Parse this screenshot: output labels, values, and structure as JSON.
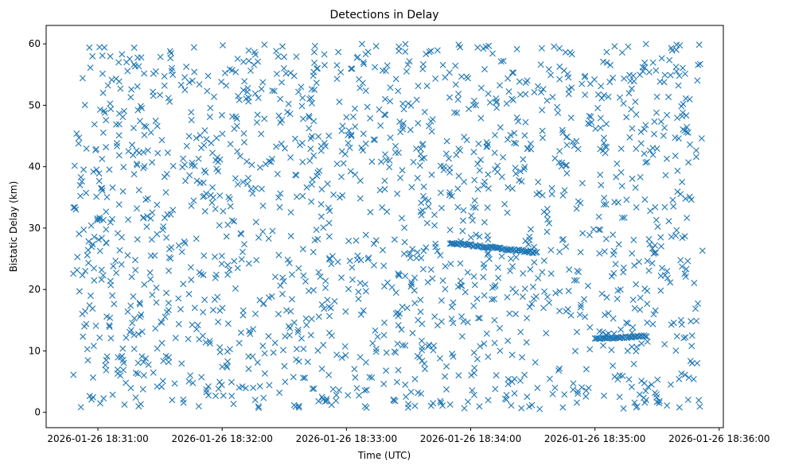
{
  "chart_data": {
    "type": "scatter",
    "title": "Detections in Delay",
    "xlabel": "Time (UTC)",
    "ylabel": "Bistatic Delay (km)",
    "x_ticks": [
      "2026-01-26 18:31:00",
      "2026-01-26 18:32:00",
      "2026-01-26 18:33:00",
      "2026-01-26 18:34:00",
      "2026-01-26 18:35:00",
      "2026-01-26 18:36:00"
    ],
    "y_ticks": [
      "0",
      "10",
      "20",
      "30",
      "40",
      "50",
      "60"
    ],
    "xlim": [
      "2026-01-26 18:30:35",
      "2026-01-26 18:36:02"
    ],
    "ylim": [
      -2.5,
      63
    ],
    "grid": false,
    "marker": "x",
    "marker_color": "#1f77b4",
    "series": [
      {
        "noise": {
          "count": 1700,
          "x_range": [
            "2026-01-26 18:30:48",
            "2026-01-26 18:35:52"
          ],
          "y_range": [
            0.5,
            60
          ]
        },
        "tracks": [
          {
            "start": [
              "2026-01-26 18:33:50",
              27.6
            ],
            "end": [
              "2026-01-26 18:34:32",
              26.0
            ],
            "points": 70
          },
          {
            "start": [
              "2026-01-26 18:35:00",
              12.0
            ],
            "end": [
              "2026-01-26 18:35:25",
              12.4
            ],
            "points": 40
          }
        ]
      }
    ]
  }
}
